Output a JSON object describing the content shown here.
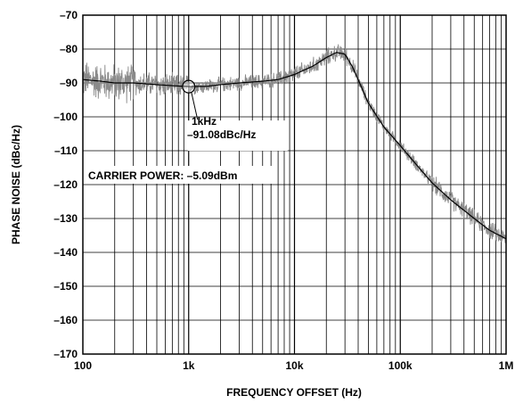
{
  "chart_data": {
    "type": "line",
    "title": "",
    "xlabel": "FREQUENCY OFFSET (Hz)",
    "ylabel": "PHASE NOISE (dBc/Hz)",
    "xscale": "log",
    "xlim": [
      100,
      1000000
    ],
    "ylim": [
      -170,
      -70
    ],
    "grid": true,
    "legend": "none",
    "x_ticks": [
      100,
      1000,
      10000,
      100000,
      1000000
    ],
    "x_tick_labels": [
      "100",
      "1k",
      "10k",
      "100k",
      "1M"
    ],
    "y_ticks": [
      -70,
      -80,
      -90,
      -100,
      -110,
      -120,
      -130,
      -140,
      -150,
      -160,
      -170
    ],
    "y_tick_labels": [
      "–70",
      "–80",
      "–90",
      "–100",
      "–110",
      "–120",
      "–130",
      "–140",
      "–150",
      "–160",
      "–170"
    ],
    "series": [
      {
        "style": "noisy measured trace",
        "color": "#8a8a8a",
        "x": [
          100,
          150,
          200,
          300,
          500,
          700,
          1000,
          1500,
          2000,
          3000,
          5000,
          7000,
          10000,
          15000,
          20000,
          25000,
          30000,
          35000,
          40000,
          50000,
          70000,
          100000,
          150000,
          200000,
          300000,
          500000,
          700000,
          1000000
        ],
        "y": [
          -89,
          -89.5,
          -90,
          -90,
          -90.5,
          -90.8,
          -91.08,
          -91,
          -90.5,
          -90,
          -89.5,
          -89,
          -87.5,
          -85,
          -82.5,
          -81,
          -81.5,
          -85,
          -89,
          -96,
          -103,
          -108.5,
          -115,
          -119.5,
          -124.5,
          -130,
          -133.5,
          -136
        ]
      },
      {
        "style": "smoothed trace",
        "color": "#000000",
        "x": [
          100,
          150,
          200,
          300,
          500,
          700,
          1000,
          1500,
          2000,
          3000,
          5000,
          7000,
          10000,
          15000,
          20000,
          25000,
          30000,
          35000,
          40000,
          50000,
          70000,
          100000,
          150000,
          200000,
          300000,
          500000,
          700000,
          1000000
        ],
        "y": [
          -89,
          -89.5,
          -90,
          -90,
          -90.5,
          -90.8,
          -91.08,
          -91,
          -90.5,
          -90,
          -89.5,
          -89,
          -87.5,
          -85,
          -82.5,
          -81,
          -81.5,
          -85,
          -89,
          -96,
          -103,
          -108.5,
          -115,
          -119.5,
          -124.5,
          -130,
          -133.5,
          -136
        ]
      }
    ],
    "annotations": [
      {
        "marker": "circle",
        "x": 1000,
        "y": -91.08,
        "lines": [
          "1kHz",
          "–91.08dBc/Hz"
        ]
      },
      {
        "text": "CARRIER POWER: –5.09dBm"
      }
    ]
  }
}
